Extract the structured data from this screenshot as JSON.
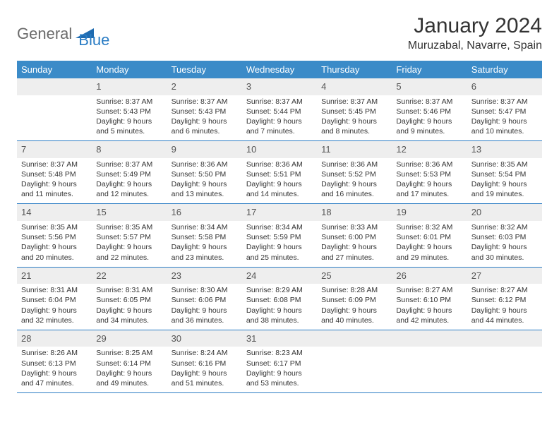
{
  "branding": {
    "word1": "General",
    "word2": "Blue",
    "word1_color": "#6b6b6b",
    "word2_color": "#2a7cc4",
    "triangle_color": "#1f6bb0"
  },
  "title": "January 2024",
  "location": "Muruzabal, Navarre, Spain",
  "colors": {
    "header_band": "#3b8bc8",
    "header_text": "#ffffff",
    "daynum_band": "#eeeeee",
    "row_border": "#2a7cc4",
    "body_text": "#333333"
  },
  "typography": {
    "title_fontsize": 30,
    "location_fontsize": 16,
    "weekday_fontsize": 13,
    "daynum_fontsize": 13,
    "content_fontsize": 10.5
  },
  "weekdays": [
    "Sunday",
    "Monday",
    "Tuesday",
    "Wednesday",
    "Thursday",
    "Friday",
    "Saturday"
  ],
  "layout": {
    "columns": 7,
    "rows": 5,
    "first_weekday_index": 1
  },
  "weeks": [
    [
      {
        "day": null
      },
      {
        "day": "1",
        "sunrise": "Sunrise: 8:37 AM",
        "sunset": "Sunset: 5:43 PM",
        "daylight1": "Daylight: 9 hours",
        "daylight2": "and 5 minutes."
      },
      {
        "day": "2",
        "sunrise": "Sunrise: 8:37 AM",
        "sunset": "Sunset: 5:43 PM",
        "daylight1": "Daylight: 9 hours",
        "daylight2": "and 6 minutes."
      },
      {
        "day": "3",
        "sunrise": "Sunrise: 8:37 AM",
        "sunset": "Sunset: 5:44 PM",
        "daylight1": "Daylight: 9 hours",
        "daylight2": "and 7 minutes."
      },
      {
        "day": "4",
        "sunrise": "Sunrise: 8:37 AM",
        "sunset": "Sunset: 5:45 PM",
        "daylight1": "Daylight: 9 hours",
        "daylight2": "and 8 minutes."
      },
      {
        "day": "5",
        "sunrise": "Sunrise: 8:37 AM",
        "sunset": "Sunset: 5:46 PM",
        "daylight1": "Daylight: 9 hours",
        "daylight2": "and 9 minutes."
      },
      {
        "day": "6",
        "sunrise": "Sunrise: 8:37 AM",
        "sunset": "Sunset: 5:47 PM",
        "daylight1": "Daylight: 9 hours",
        "daylight2": "and 10 minutes."
      }
    ],
    [
      {
        "day": "7",
        "sunrise": "Sunrise: 8:37 AM",
        "sunset": "Sunset: 5:48 PM",
        "daylight1": "Daylight: 9 hours",
        "daylight2": "and 11 minutes."
      },
      {
        "day": "8",
        "sunrise": "Sunrise: 8:37 AM",
        "sunset": "Sunset: 5:49 PM",
        "daylight1": "Daylight: 9 hours",
        "daylight2": "and 12 minutes."
      },
      {
        "day": "9",
        "sunrise": "Sunrise: 8:36 AM",
        "sunset": "Sunset: 5:50 PM",
        "daylight1": "Daylight: 9 hours",
        "daylight2": "and 13 minutes."
      },
      {
        "day": "10",
        "sunrise": "Sunrise: 8:36 AM",
        "sunset": "Sunset: 5:51 PM",
        "daylight1": "Daylight: 9 hours",
        "daylight2": "and 14 minutes."
      },
      {
        "day": "11",
        "sunrise": "Sunrise: 8:36 AM",
        "sunset": "Sunset: 5:52 PM",
        "daylight1": "Daylight: 9 hours",
        "daylight2": "and 16 minutes."
      },
      {
        "day": "12",
        "sunrise": "Sunrise: 8:36 AM",
        "sunset": "Sunset: 5:53 PM",
        "daylight1": "Daylight: 9 hours",
        "daylight2": "and 17 minutes."
      },
      {
        "day": "13",
        "sunrise": "Sunrise: 8:35 AM",
        "sunset": "Sunset: 5:54 PM",
        "daylight1": "Daylight: 9 hours",
        "daylight2": "and 19 minutes."
      }
    ],
    [
      {
        "day": "14",
        "sunrise": "Sunrise: 8:35 AM",
        "sunset": "Sunset: 5:56 PM",
        "daylight1": "Daylight: 9 hours",
        "daylight2": "and 20 minutes."
      },
      {
        "day": "15",
        "sunrise": "Sunrise: 8:35 AM",
        "sunset": "Sunset: 5:57 PM",
        "daylight1": "Daylight: 9 hours",
        "daylight2": "and 22 minutes."
      },
      {
        "day": "16",
        "sunrise": "Sunrise: 8:34 AM",
        "sunset": "Sunset: 5:58 PM",
        "daylight1": "Daylight: 9 hours",
        "daylight2": "and 23 minutes."
      },
      {
        "day": "17",
        "sunrise": "Sunrise: 8:34 AM",
        "sunset": "Sunset: 5:59 PM",
        "daylight1": "Daylight: 9 hours",
        "daylight2": "and 25 minutes."
      },
      {
        "day": "18",
        "sunrise": "Sunrise: 8:33 AM",
        "sunset": "Sunset: 6:00 PM",
        "daylight1": "Daylight: 9 hours",
        "daylight2": "and 27 minutes."
      },
      {
        "day": "19",
        "sunrise": "Sunrise: 8:32 AM",
        "sunset": "Sunset: 6:01 PM",
        "daylight1": "Daylight: 9 hours",
        "daylight2": "and 29 minutes."
      },
      {
        "day": "20",
        "sunrise": "Sunrise: 8:32 AM",
        "sunset": "Sunset: 6:03 PM",
        "daylight1": "Daylight: 9 hours",
        "daylight2": "and 30 minutes."
      }
    ],
    [
      {
        "day": "21",
        "sunrise": "Sunrise: 8:31 AM",
        "sunset": "Sunset: 6:04 PM",
        "daylight1": "Daylight: 9 hours",
        "daylight2": "and 32 minutes."
      },
      {
        "day": "22",
        "sunrise": "Sunrise: 8:31 AM",
        "sunset": "Sunset: 6:05 PM",
        "daylight1": "Daylight: 9 hours",
        "daylight2": "and 34 minutes."
      },
      {
        "day": "23",
        "sunrise": "Sunrise: 8:30 AM",
        "sunset": "Sunset: 6:06 PM",
        "daylight1": "Daylight: 9 hours",
        "daylight2": "and 36 minutes."
      },
      {
        "day": "24",
        "sunrise": "Sunrise: 8:29 AM",
        "sunset": "Sunset: 6:08 PM",
        "daylight1": "Daylight: 9 hours",
        "daylight2": "and 38 minutes."
      },
      {
        "day": "25",
        "sunrise": "Sunrise: 8:28 AM",
        "sunset": "Sunset: 6:09 PM",
        "daylight1": "Daylight: 9 hours",
        "daylight2": "and 40 minutes."
      },
      {
        "day": "26",
        "sunrise": "Sunrise: 8:27 AM",
        "sunset": "Sunset: 6:10 PM",
        "daylight1": "Daylight: 9 hours",
        "daylight2": "and 42 minutes."
      },
      {
        "day": "27",
        "sunrise": "Sunrise: 8:27 AM",
        "sunset": "Sunset: 6:12 PM",
        "daylight1": "Daylight: 9 hours",
        "daylight2": "and 44 minutes."
      }
    ],
    [
      {
        "day": "28",
        "sunrise": "Sunrise: 8:26 AM",
        "sunset": "Sunset: 6:13 PM",
        "daylight1": "Daylight: 9 hours",
        "daylight2": "and 47 minutes."
      },
      {
        "day": "29",
        "sunrise": "Sunrise: 8:25 AM",
        "sunset": "Sunset: 6:14 PM",
        "daylight1": "Daylight: 9 hours",
        "daylight2": "and 49 minutes."
      },
      {
        "day": "30",
        "sunrise": "Sunrise: 8:24 AM",
        "sunset": "Sunset: 6:16 PM",
        "daylight1": "Daylight: 9 hours",
        "daylight2": "and 51 minutes."
      },
      {
        "day": "31",
        "sunrise": "Sunrise: 8:23 AM",
        "sunset": "Sunset: 6:17 PM",
        "daylight1": "Daylight: 9 hours",
        "daylight2": "and 53 minutes."
      },
      {
        "day": null
      },
      {
        "day": null
      },
      {
        "day": null
      }
    ]
  ]
}
